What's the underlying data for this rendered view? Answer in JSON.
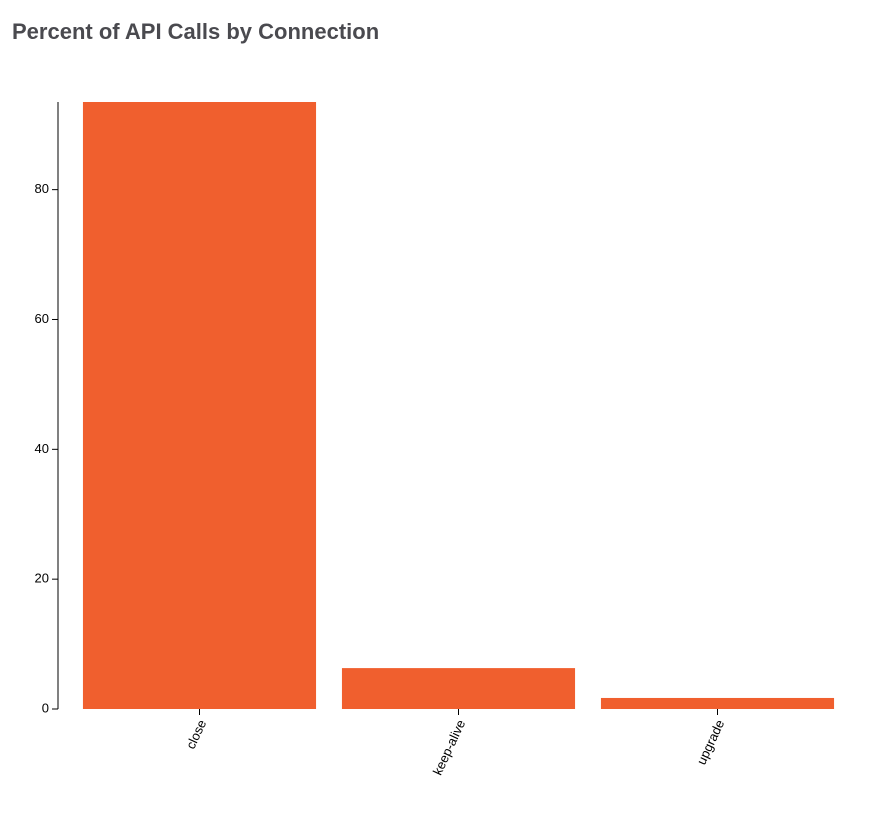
{
  "chart_data": {
    "type": "bar",
    "title": "Percent of API Calls by Connection",
    "categories": [
      "close",
      "keep-alive",
      "upgrade"
    ],
    "values": [
      93.5,
      6.3,
      1.7
    ],
    "color": "#f05f2e",
    "ylim": [
      0,
      93.5
    ],
    "yticks": [
      0,
      20,
      40,
      60,
      80
    ],
    "grid": false
  }
}
